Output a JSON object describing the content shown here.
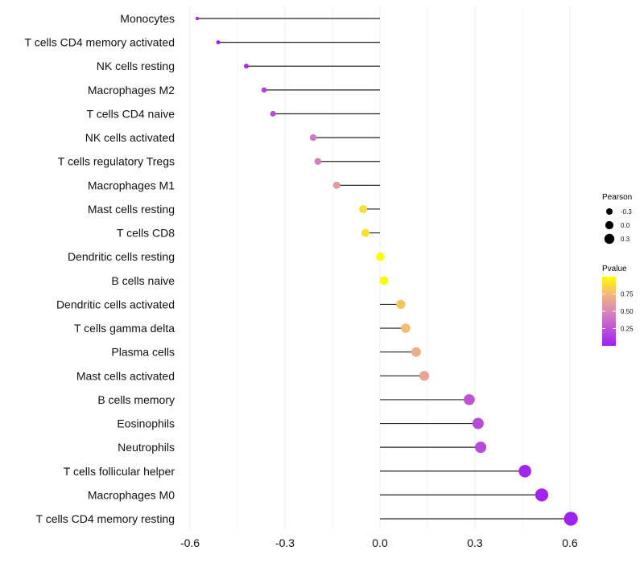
{
  "chart_data": {
    "type": "lollipop",
    "title": "",
    "xlabel": "",
    "ylabel": "",
    "xlim": [
      -0.6,
      0.6
    ],
    "x_ticks": [
      -0.6,
      -0.3,
      0.0,
      0.3,
      0.6
    ],
    "x_tick_labels": [
      "-0.6",
      "-0.3",
      "0.0",
      "0.3",
      "0.6"
    ],
    "grid": true,
    "categories": [
      "Monocytes",
      "T cells CD4 memory activated",
      "NK cells resting",
      "Macrophages M2",
      "T cells CD4 naive",
      "NK cells activated",
      "T cells regulatory  Tregs",
      "Macrophages M1",
      "Mast cells resting",
      "T cells CD8",
      "Dendritic cells resting",
      "B cells naive",
      "Dendritic cells activated",
      "T cells gamma delta",
      "Plasma cells",
      "Mast cells activated",
      "B cells memory",
      "Eosinophils",
      "Neutrophils",
      "T cells follicular helper",
      "Macrophages M0",
      "T cells CD4 memory resting"
    ],
    "pearson": [
      -0.577,
      -0.511,
      -0.422,
      -0.366,
      -0.338,
      -0.211,
      -0.196,
      -0.137,
      -0.053,
      -0.046,
      0.001,
      0.013,
      0.066,
      0.081,
      0.114,
      0.14,
      0.282,
      0.31,
      0.318,
      0.458,
      0.511,
      0.603
    ],
    "pvalue": [
      0.01,
      0.02,
      0.05,
      0.15,
      0.19,
      0.42,
      0.45,
      0.6,
      0.88,
      0.9,
      0.99,
      0.98,
      0.8,
      0.76,
      0.7,
      0.65,
      0.25,
      0.21,
      0.2,
      0.03,
      0.02,
      0.004
    ],
    "legend_size": {
      "title": "Pearson",
      "labels": [
        "-0.3",
        "0.0",
        "0.3"
      ],
      "values": [
        -0.3,
        0.0,
        0.3
      ]
    },
    "legend_color": {
      "title": "Pvalue",
      "labels": [
        "0.75",
        "0.50",
        "0.25"
      ],
      "values": [
        0.75,
        0.5,
        0.25
      ],
      "range": [
        0.0,
        1.0
      ],
      "low_color": "#A020F0",
      "high_color": "#FFFF00"
    },
    "legend_position": "right"
  }
}
